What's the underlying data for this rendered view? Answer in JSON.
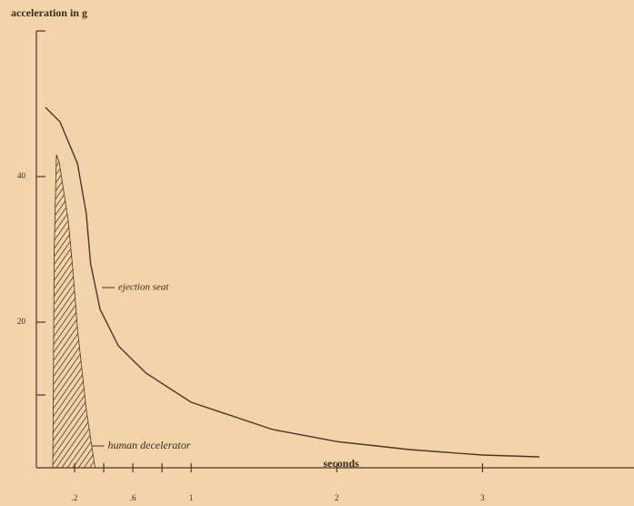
{
  "chart_data": {
    "type": "line",
    "y_label": "acceleration in g",
    "x_label": "seconds",
    "xlim": [
      -0.0625,
      4.04
    ],
    "ylim": [
      0,
      60
    ],
    "xticks": [
      {
        "value": 0.2,
        "label": ".2"
      },
      {
        "value": 0.4,
        "label": null
      },
      {
        "value": 0.6,
        "label": ".6"
      },
      {
        "value": 0.8,
        "label": null
      },
      1,
      2,
      3
    ],
    "yticks": [
      {
        "value": 10,
        "label": null
      },
      20,
      40,
      {
        "value": 60,
        "label": null
      }
    ],
    "series": [
      {
        "name": "ejection seat",
        "kind": "line",
        "color": "#4a3626",
        "x": [
          0,
          0.1,
          0.22,
          0.28,
          0.31,
          0.375,
          0.5,
          0.69,
          1,
          1.56,
          2,
          2.5,
          3,
          3.39
        ],
        "values": [
          49.5,
          47.5,
          41.75,
          34.9,
          28,
          21.75,
          16.75,
          13,
          9,
          5.25,
          3.6,
          2.5,
          1.75,
          1.5
        ]
      },
      {
        "name": "human decelerator",
        "kind": "hatched-area",
        "color": "#4a3626",
        "x": [
          0.05,
          0.06,
          0.075,
          0.094,
          0.156,
          0.19,
          0.22,
          0.28,
          0.34
        ],
        "values": [
          0,
          30,
          43,
          42,
          34,
          26.75,
          19,
          8,
          0
        ]
      }
    ]
  }
}
